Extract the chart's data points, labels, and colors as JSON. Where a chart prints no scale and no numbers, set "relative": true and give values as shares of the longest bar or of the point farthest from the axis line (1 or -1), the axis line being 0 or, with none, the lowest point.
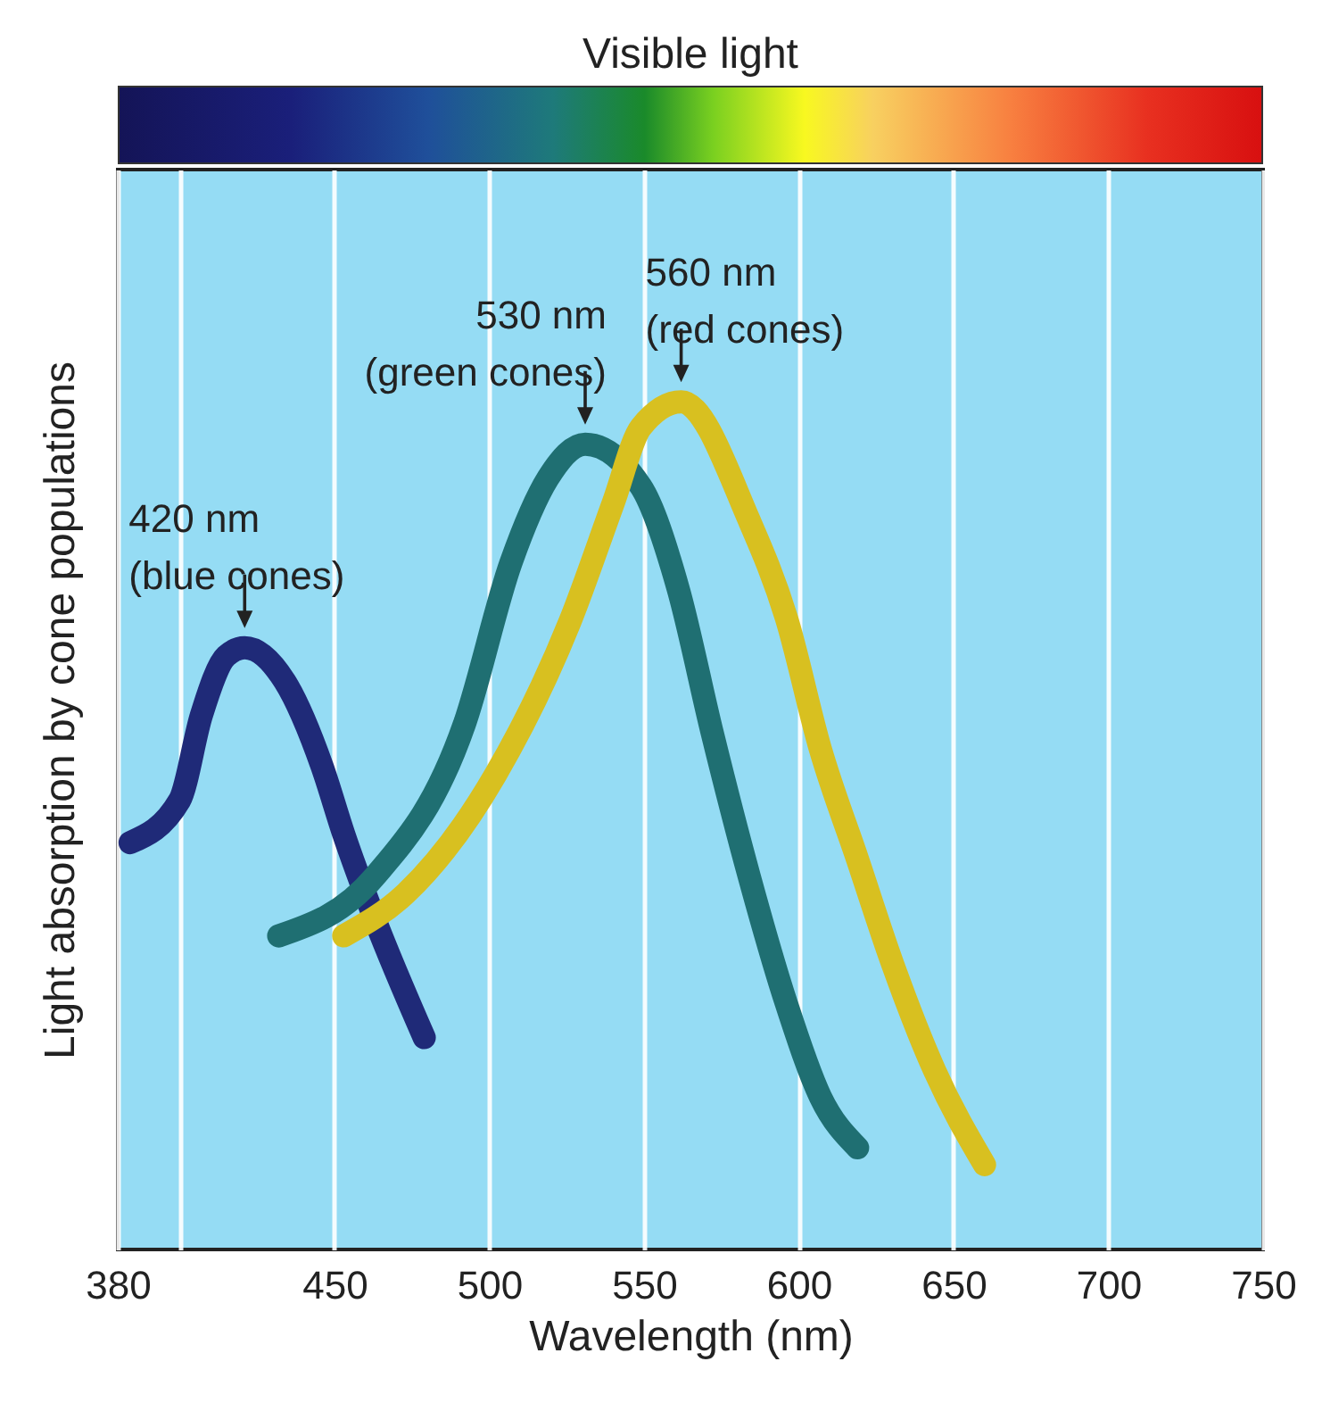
{
  "chart_data": {
    "type": "line",
    "title": "Visible light",
    "xlabel": "Wavelength (nm)",
    "ylabel": "Light absorption by cone populations",
    "relative": true,
    "xlim": [
      380,
      750
    ],
    "xticks": [
      380,
      {
        "value": 400,
        "label": null
      },
      450,
      500,
      550,
      600,
      650,
      700,
      750
    ],
    "grid": "x",
    "series": [
      {
        "color": "#1f2a78",
        "x": [
          384,
          400,
          407,
          415,
          421,
          434,
          446,
          453,
          463,
          479
        ],
        "values": [
          0.48,
          0.53,
          0.63,
          0.7,
          0.71,
          0.67,
          0.57,
          0.49,
          0.39,
          0.25
        ]
      },
      {
        "color": "#1f6f72",
        "x": [
          432,
          463,
          492,
          507,
          519,
          531,
          549,
          561,
          572,
          584,
          596,
          607,
          619
        ],
        "values": [
          0.37,
          0.44,
          0.62,
          0.81,
          0.91,
          0.95,
          0.9,
          0.78,
          0.61,
          0.44,
          0.29,
          0.18,
          0.12
        ]
      },
      {
        "color": "#d8c020",
        "x": [
          453,
          473,
          502,
          526,
          540,
          549,
          562,
          584,
          596,
          607,
          619,
          630,
          644,
          660
        ],
        "values": [
          0.37,
          0.42,
          0.56,
          0.74,
          0.88,
          0.97,
          1.0,
          0.86,
          0.745,
          0.59,
          0.46,
          0.34,
          0.21,
          0.1
        ]
      }
    ],
    "annotations": [
      {
        "text": "420 nm\n(blue cones)",
        "x": 421,
        "y": 0.71
      },
      {
        "text": "530 nm\n(green cones)",
        "x": 531,
        "y": 0.95
      },
      {
        "text": "560 nm\n(red cones)",
        "x": 562,
        "y": 1.0
      }
    ]
  }
}
